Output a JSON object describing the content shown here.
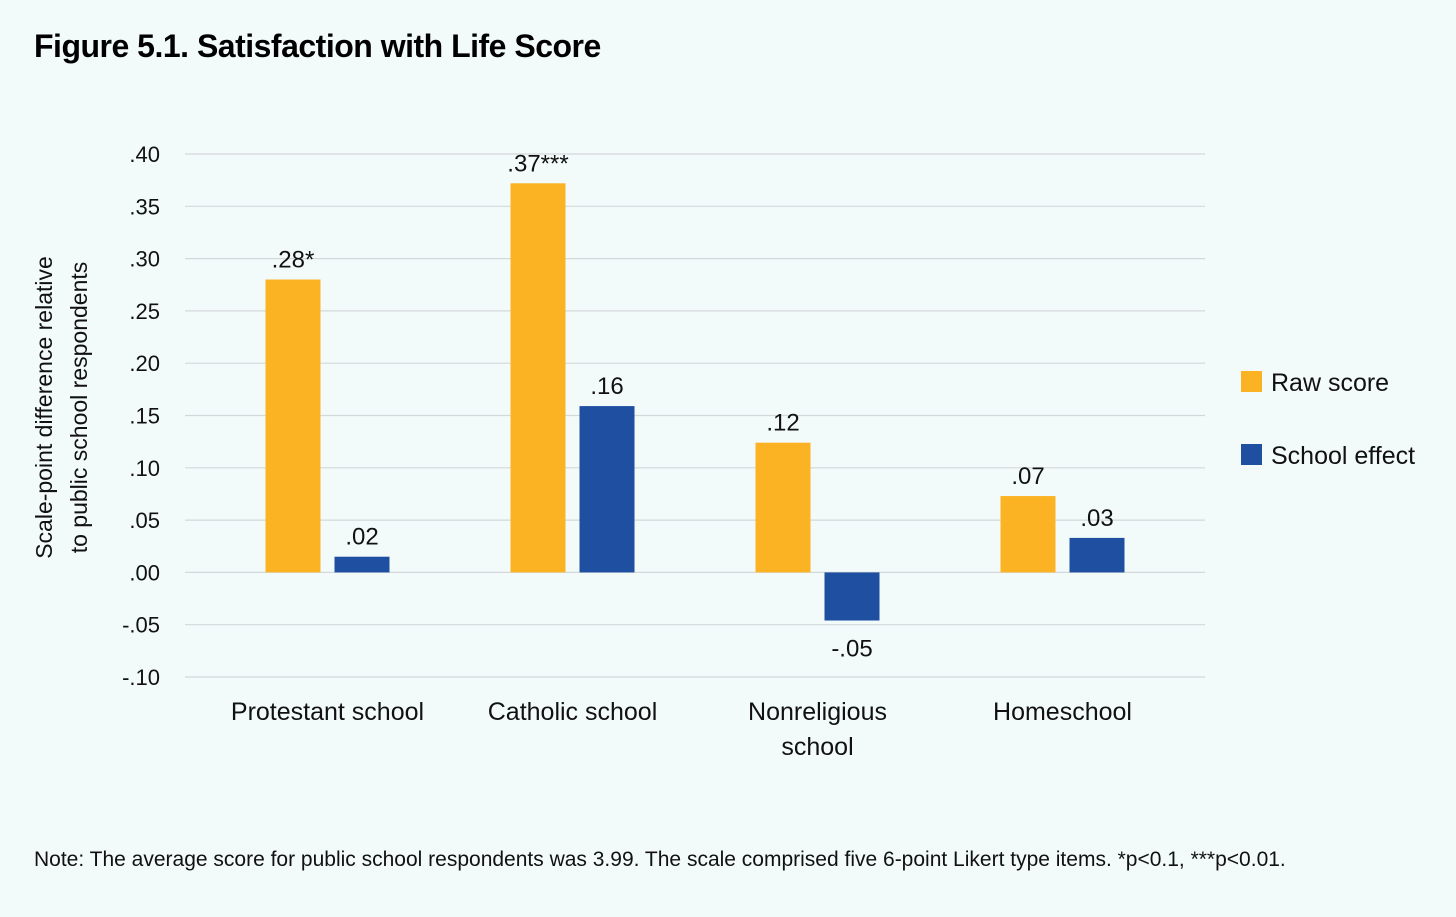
{
  "chart_data": {
    "type": "bar",
    "title": "Figure 5.1. Satisfaction with Life Score",
    "ylabel": [
      "Scale-point difference relative",
      "to public school respondents"
    ],
    "xlabel": "",
    "ylim": [
      -0.1,
      0.4
    ],
    "yticks": [
      0.4,
      0.35,
      0.3,
      0.25,
      0.2,
      0.15,
      0.1,
      0.05,
      0.0,
      -0.05,
      -0.1
    ],
    "ytick_labels": [
      ".40",
      ".35",
      ".30",
      ".25",
      ".20",
      ".15",
      ".10",
      ".05",
      ".00",
      "-.05",
      "-.10"
    ],
    "grid": true,
    "legend_position": "right",
    "categories": [
      [
        "Protestant school"
      ],
      [
        "Catholic school"
      ],
      [
        "Nonreligious",
        "school"
      ],
      [
        "Homeschool"
      ]
    ],
    "series": [
      {
        "name": "Raw score",
        "color": "#fbb324",
        "values": [
          0.28,
          0.372,
          0.124,
          0.073
        ],
        "labels": [
          ".28*",
          ".37***",
          ".12",
          ".07"
        ]
      },
      {
        "name": "School effect",
        "color": "#1f4fa0",
        "values": [
          0.015,
          0.159,
          -0.046,
          0.033
        ],
        "labels": [
          ".02",
          ".16",
          "-.05",
          ".03"
        ]
      }
    ]
  },
  "note": "Note: The average score for public school respondents was 3.99. The scale comprised five 6-point Likert type items. *p<0.1, ***p<0.01."
}
